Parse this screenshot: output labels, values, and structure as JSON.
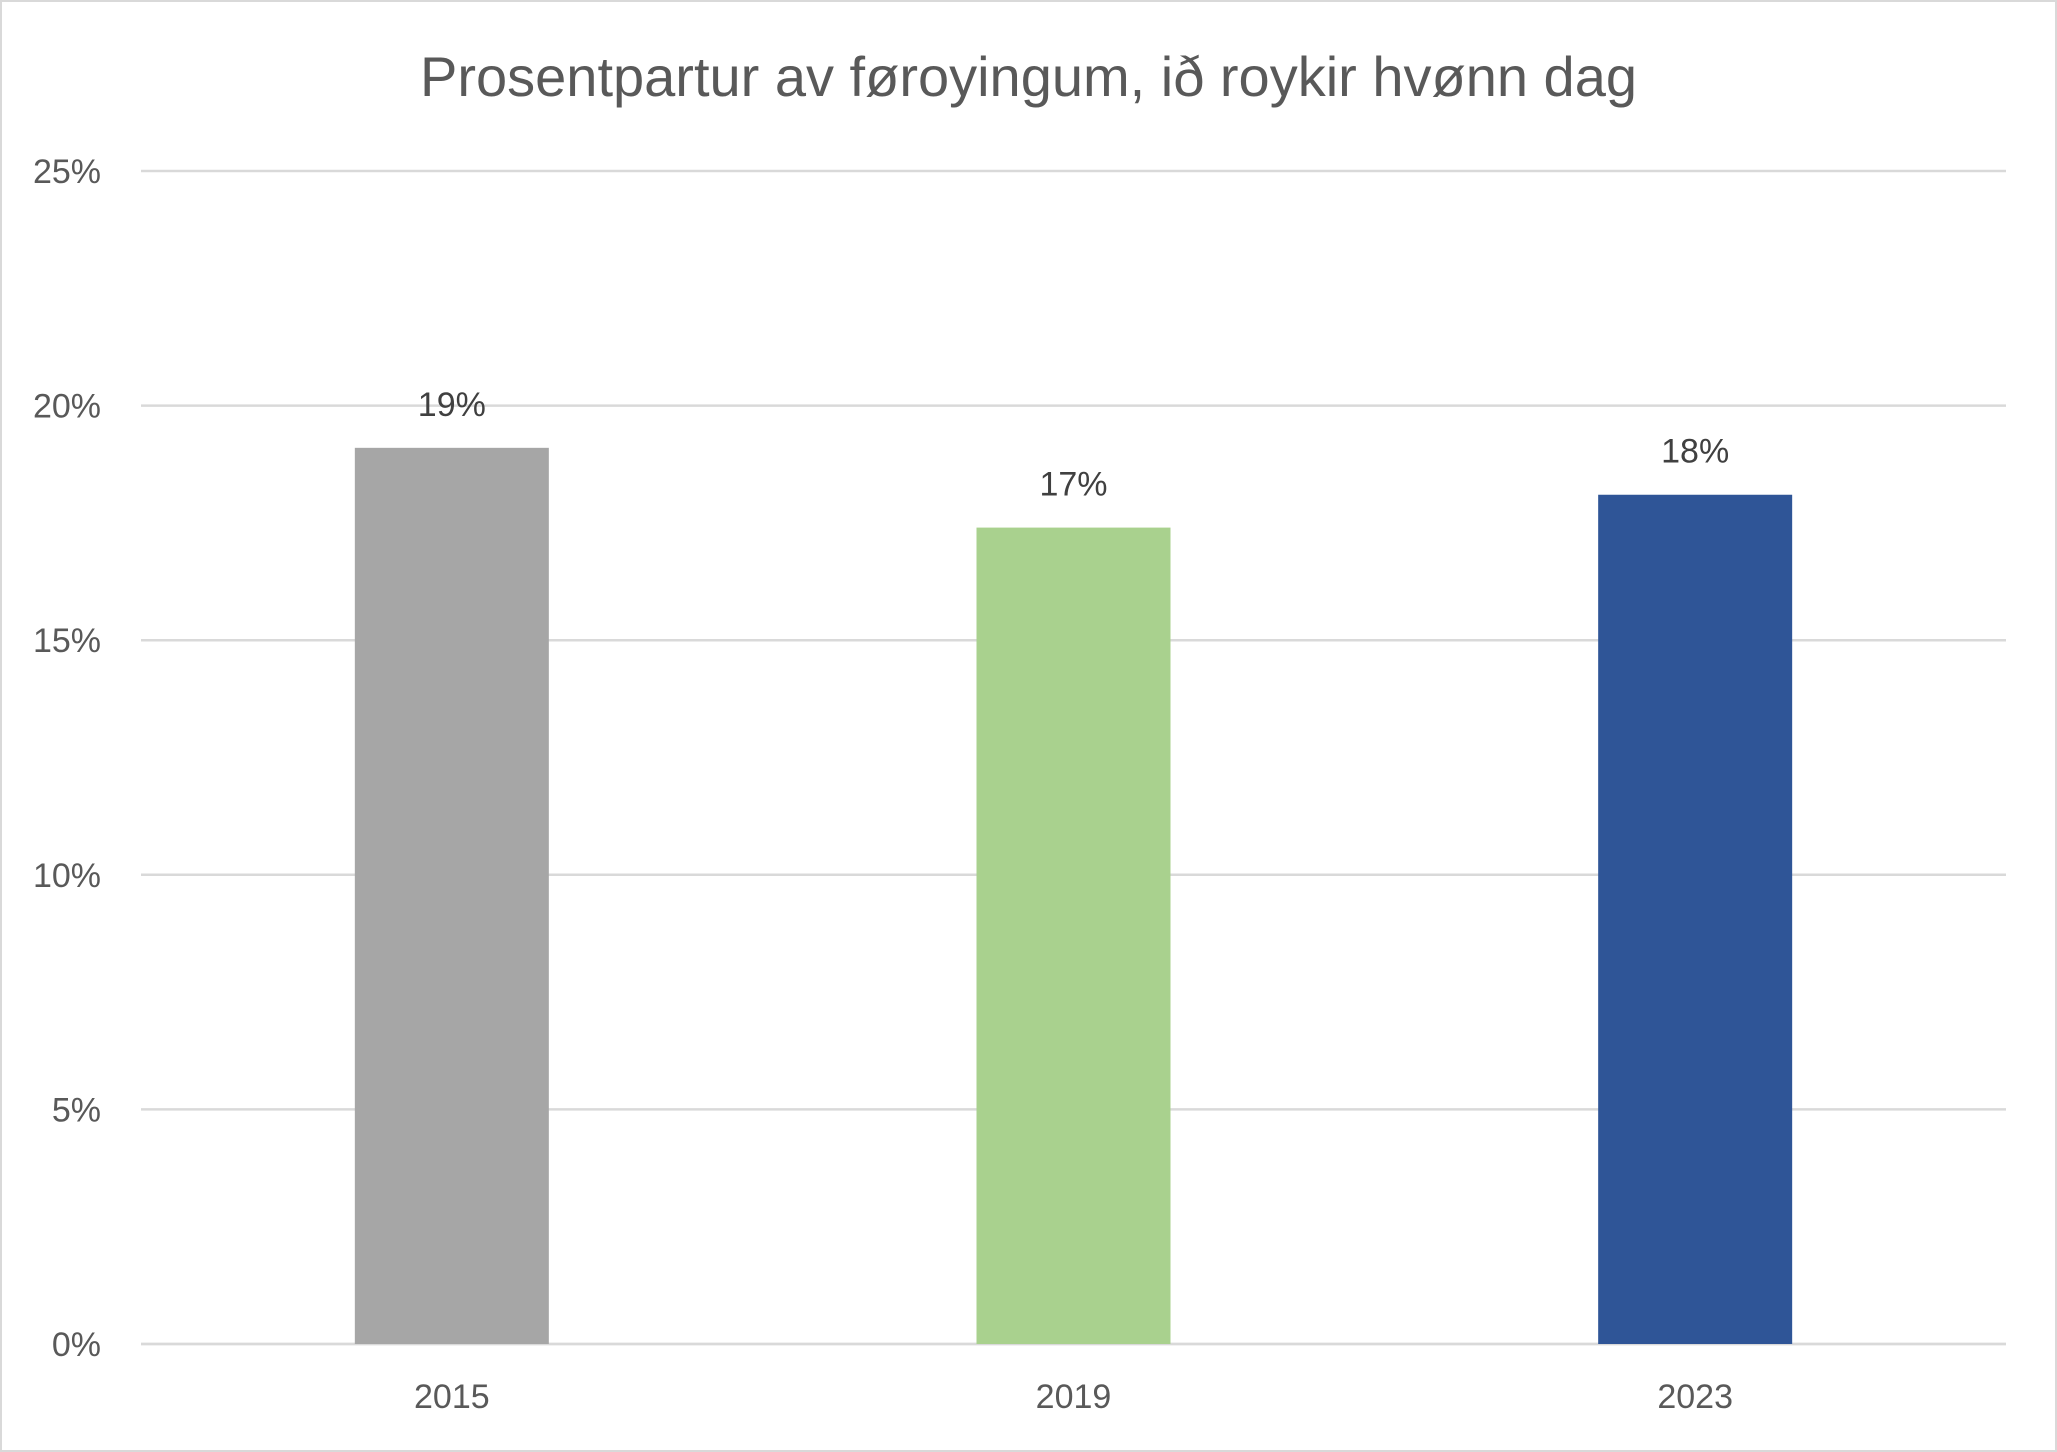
{
  "chart_data": {
    "type": "bar",
    "title": "Prosentpartur av føroyingum, ið roykir hvønn dag",
    "xlabel": "",
    "ylabel": "",
    "categories": [
      "2015",
      "2019",
      "2023"
    ],
    "values": [
      19.1,
      17.4,
      18.1
    ],
    "data_labels": [
      "19%",
      "17%",
      "18%"
    ],
    "colors": [
      "#a6a6a6",
      "#a9d18e",
      "#2f5597"
    ],
    "ylim": [
      0,
      25
    ],
    "yticks": [
      0,
      5,
      10,
      15,
      20,
      25
    ],
    "ytick_labels": [
      "0%",
      "5%",
      "10%",
      "15%",
      "20%",
      "25%"
    ],
    "grid": true,
    "legend": "none"
  }
}
